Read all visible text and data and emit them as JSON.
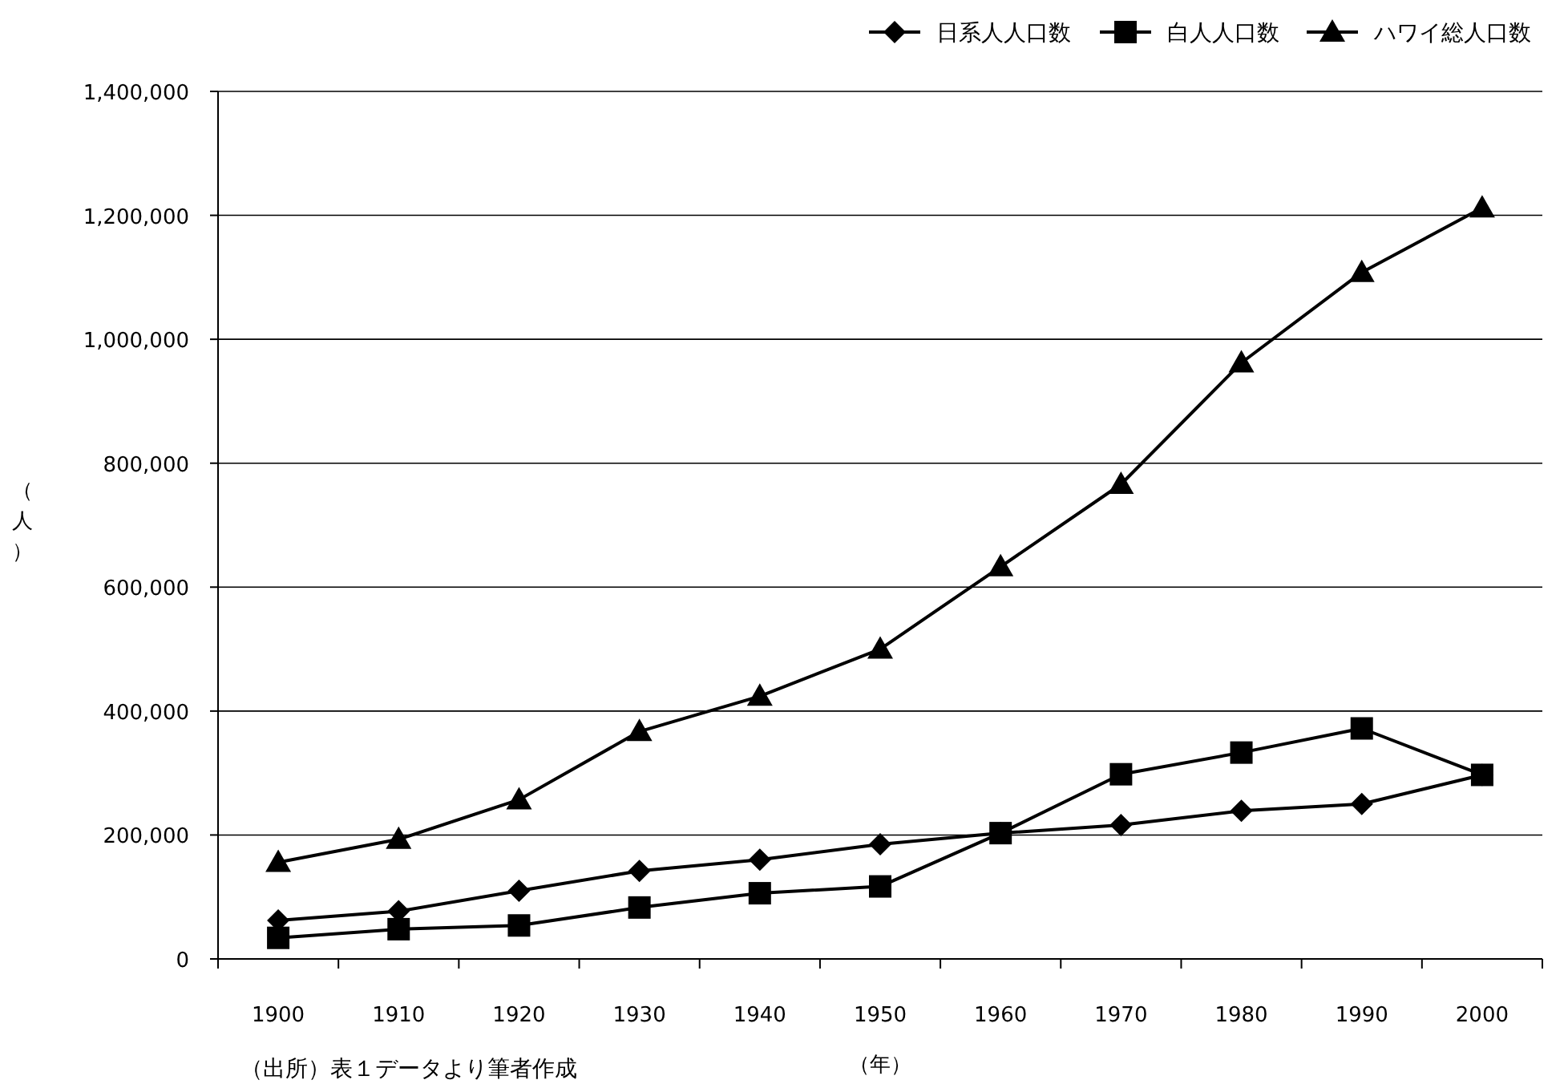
{
  "chart_data": {
    "type": "line",
    "xlabel": "（年）",
    "ylabel": "（人）",
    "annotations": [
      "（出所）表１データより筆者作成"
    ],
    "categories": [
      "1900",
      "1910",
      "1920",
      "1930",
      "1940",
      "1950",
      "1960",
      "1970",
      "1980",
      "1990",
      "2000"
    ],
    "series": [
      {
        "name": "日系人人口数",
        "color": "#000000",
        "marker": "diamond",
        "values": [
          62000,
          77000,
          110000,
          142000,
          160000,
          185000,
          203000,
          216000,
          239000,
          250000,
          297000
        ]
      },
      {
        "name": "白人人口数",
        "color": "#000000",
        "marker": "square",
        "values": [
          34000,
          48000,
          54000,
          83000,
          106000,
          117000,
          203000,
          298000,
          333000,
          372000,
          297000
        ]
      },
      {
        "name": "ハワイ総人口数",
        "color": "#000000",
        "marker": "triangle",
        "values": [
          156000,
          193000,
          257000,
          367000,
          424000,
          500000,
          633000,
          766000,
          962000,
          1108000,
          1212000
        ]
      }
    ],
    "ylim": [
      0,
      1400000
    ],
    "yticks": [
      0,
      {
        "value": 200000,
        "label": "200,000"
      },
      {
        "value": 400000,
        "label": "400,000"
      },
      {
        "value": 600000,
        "label": "600,000"
      },
      {
        "value": 800000,
        "label": "800,000"
      },
      {
        "value": 1000000,
        "label": "1,000,000"
      },
      {
        "value": 1200000,
        "label": "1,200,000"
      },
      {
        "value": 1400000,
        "label": "1,400,000"
      }
    ],
    "grid": "y",
    "legend": "top right",
    "line_style": "solid"
  }
}
